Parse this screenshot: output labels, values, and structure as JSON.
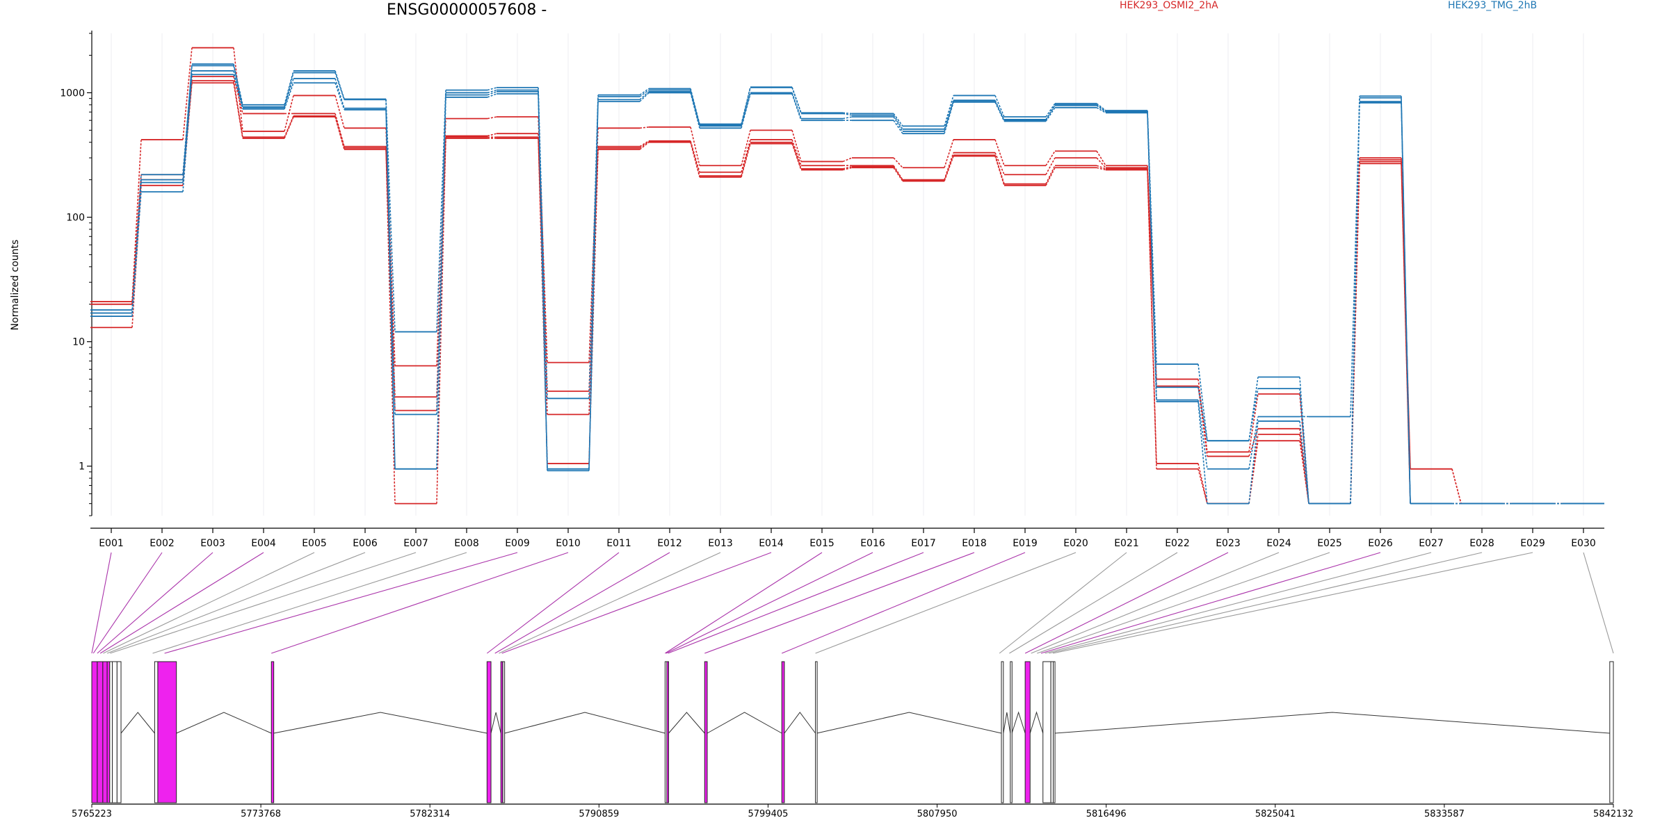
{
  "title": "ENSG00000057608 -",
  "ylabel": "Normalized counts",
  "legend": [
    {
      "name": "HEK293_OSMI2_2hA",
      "color": "#d62728"
    },
    {
      "name": "HEK293_TMG_2hB",
      "color": "#1f77b4"
    }
  ],
  "colors": {
    "red": "#d62728",
    "blue": "#1f77b4",
    "exon_fill": "#ee22ee",
    "exon_link": "#aa33aa",
    "other_link": "#999999",
    "grid": "#ececf2"
  },
  "chart_data": {
    "type": "line",
    "yscale": "log",
    "ylim": [
      0.4,
      3000
    ],
    "yticks": [
      1,
      10,
      100,
      1000
    ],
    "ytick_labels": [
      "1",
      "10",
      "100",
      "1000"
    ],
    "grid": "vertical-only",
    "legend_position": "top",
    "categories": [
      "E001",
      "E002",
      "E003",
      "E004",
      "E005",
      "E006",
      "E007",
      "E008",
      "E009",
      "E010",
      "E011",
      "E012",
      "E013",
      "E014",
      "E015",
      "E016",
      "E017",
      "E018",
      "E019",
      "E020",
      "E021",
      "E022",
      "E023",
      "E024",
      "E025",
      "E026",
      "E027",
      "E028",
      "E029",
      "E030"
    ],
    "series": [
      {
        "name": "",
        "color": "#d62728",
        "values": [
          21,
          420,
          2300,
          490,
          950,
          520,
          6.4,
          620,
          640,
          6.8,
          520,
          530,
          260,
          500,
          280,
          300,
          250,
          420,
          260,
          340,
          260,
          5.0,
          1.3,
          3.8,
          0.5,
          300,
          0.95,
          0.5,
          0.5,
          0.5
        ]
      },
      {
        "name": "",
        "color": "#d62728",
        "values": [
          20,
          220,
          1350,
          680,
          680,
          370,
          3.6,
          450,
          470,
          4.0,
          370,
          410,
          230,
          420,
          260,
          260,
          200,
          330,
          220,
          300,
          250,
          4.4,
          1.2,
          2.0,
          0.5,
          290,
          0.95,
          0.5,
          0.5,
          0.5
        ]
      },
      {
        "name": "",
        "color": "#d62728",
        "values": [
          13,
          180,
          1200,
          430,
          640,
          350,
          2.8,
          430,
          430,
          2.6,
          350,
          400,
          210,
          390,
          240,
          250,
          195,
          310,
          180,
          250,
          240,
          1.05,
          0.5,
          1.6,
          0.5,
          270,
          0.5,
          0.5,
          0.5,
          0.5
        ]
      },
      {
        "name": "",
        "color": "#d62728",
        "values": [
          20,
          200,
          1250,
          440,
          650,
          360,
          0.5,
          440,
          440,
          1.05,
          360,
          405,
          215,
          400,
          245,
          255,
          198,
          315,
          185,
          260,
          245,
          0.95,
          0.5,
          1.8,
          0.5,
          280,
          0.5,
          0.5,
          0.5,
          0.5
        ]
      },
      {
        "name": "",
        "color": "#1f77b4",
        "values": [
          18,
          220,
          1700,
          800,
          1500,
          890,
          12,
          1050,
          1100,
          3.5,
          960,
          1080,
          560,
          1110,
          690,
          680,
          540,
          950,
          640,
          820,
          720,
          6.6,
          1.6,
          5.2,
          0.5,
          940,
          0.5,
          0.5,
          0.5,
          0.5
        ]
      },
      {
        "name": "",
        "color": "#1f77b4",
        "values": [
          17,
          200,
          1650,
          770,
          1450,
          880,
          2.6,
          1000,
          1050,
          0.95,
          930,
          1050,
          550,
          1100,
          680,
          660,
          510,
          870,
          600,
          800,
          710,
          4.3,
          1.6,
          4.2,
          0.5,
          910,
          0.5,
          0.5,
          0.5,
          0.5
        ]
      },
      {
        "name": "",
        "color": "#1f77b4",
        "values": [
          17,
          190,
          1500,
          760,
          1300,
          750,
          0.95,
          960,
          1020,
          0.95,
          880,
          1020,
          540,
          1000,
          620,
          640,
          490,
          860,
          610,
          790,
          700,
          3.4,
          0.95,
          2.5,
          2.5,
          850,
          0.5,
          0.5,
          0.5,
          0.5
        ]
      },
      {
        "name": "",
        "color": "#1f77b4",
        "values": [
          16,
          160,
          1400,
          740,
          1200,
          730,
          0.95,
          920,
          980,
          0.92,
          850,
          1000,
          520,
          980,
          600,
          600,
          470,
          840,
          590,
          760,
          690,
          3.3,
          0.5,
          2.3,
          0.5,
          830,
          0.5,
          0.5,
          0.5,
          0.5
        ]
      }
    ]
  },
  "gene_model": {
    "coord_min": 5765223,
    "coord_max": 5842132,
    "axis_labels": [
      "5765223",
      "5773768",
      "5782314",
      "5790859",
      "5799405",
      "5807950",
      "5816496",
      "5825041",
      "5833587",
      "5842132"
    ],
    "axis_values": [
      5765223,
      5773768,
      5782314,
      5790859,
      5799405,
      5807950,
      5816496,
      5825041,
      5833587,
      5842132
    ],
    "exons": [
      {
        "id": "E001",
        "start": 5765223,
        "end": 5765500,
        "highlight": true
      },
      {
        "id": "E002",
        "start": 5765500,
        "end": 5765780,
        "highlight": true
      },
      {
        "id": "E003",
        "start": 5765780,
        "end": 5766000,
        "highlight": true
      },
      {
        "id": "E004",
        "start": 5766000,
        "end": 5766130,
        "highlight": true
      },
      {
        "id": "E005",
        "start": 5766130,
        "end": 5766260,
        "highlight": false
      },
      {
        "id": "E006",
        "start": 5766260,
        "end": 5766500,
        "highlight": false
      },
      {
        "id": "E007",
        "start": 5766500,
        "end": 5766700,
        "highlight": false
      },
      {
        "id": "E008",
        "start": 5768400,
        "end": 5768560,
        "highlight": false
      },
      {
        "id": "E009",
        "start": 5768560,
        "end": 5769500,
        "highlight": true
      },
      {
        "id": "E010",
        "start": 5774300,
        "end": 5774420,
        "highlight": true
      },
      {
        "id": "E011",
        "start": 5785200,
        "end": 5785400,
        "highlight": true
      },
      {
        "id": "E012",
        "start": 5785900,
        "end": 5785990,
        "highlight": true
      },
      {
        "id": "E013",
        "start": 5786000,
        "end": 5786090,
        "highlight": false
      },
      {
        "id": "E014",
        "start": 5794200,
        "end": 5794290,
        "highlight": false
      },
      {
        "id": "E015",
        "start": 5794290,
        "end": 5794380,
        "highlight": true
      },
      {
        "id": "E016",
        "start": 5796200,
        "end": 5796330,
        "highlight": true
      },
      {
        "id": "E017",
        "start": 5800100,
        "end": 5800230,
        "highlight": true
      },
      {
        "id": "E018",
        "start": 5801800,
        "end": 5801870,
        "highlight": false
      },
      {
        "id": "E019",
        "start": 5811200,
        "end": 5811300,
        "highlight": false
      },
      {
        "id": "E020",
        "start": 5811650,
        "end": 5811730,
        "highlight": false
      },
      {
        "id": "E021",
        "start": 5812400,
        "end": 5812650,
        "highlight": true
      },
      {
        "id": "E022",
        "start": 5813300,
        "end": 5813700,
        "highlight": false
      },
      {
        "id": "E023",
        "start": 5813700,
        "end": 5813820,
        "highlight": false
      },
      {
        "id": "E024",
        "start": 5813820,
        "end": 5813900,
        "highlight": false
      },
      {
        "id": "E030",
        "start": 5841950,
        "end": 5842132,
        "highlight": false
      }
    ],
    "links": [
      {
        "bin": "E001",
        "target": 5765223,
        "highlight": true
      },
      {
        "bin": "E002",
        "target": 5765300,
        "highlight": true
      },
      {
        "bin": "E003",
        "target": 5765500,
        "highlight": true
      },
      {
        "bin": "E004",
        "target": 5765650,
        "highlight": true
      },
      {
        "bin": "E005",
        "target": 5765800,
        "highlight": false
      },
      {
        "bin": "E006",
        "target": 5766000,
        "highlight": false
      },
      {
        "bin": "E007",
        "target": 5766150,
        "highlight": false
      },
      {
        "bin": "E008",
        "target": 5768300,
        "highlight": false
      },
      {
        "bin": "E009",
        "target": 5768900,
        "highlight": true
      },
      {
        "bin": "E010",
        "target": 5774300,
        "highlight": true
      },
      {
        "bin": "E011",
        "target": 5785200,
        "highlight": true
      },
      {
        "bin": "E012",
        "target": 5785600,
        "highlight": true
      },
      {
        "bin": "E013",
        "target": 5785800,
        "highlight": false
      },
      {
        "bin": "E014",
        "target": 5785950,
        "highlight": true
      },
      {
        "bin": "E015",
        "target": 5794200,
        "highlight": true
      },
      {
        "bin": "E016",
        "target": 5794250,
        "highlight": true
      },
      {
        "bin": "E017",
        "target": 5794350,
        "highlight": true
      },
      {
        "bin": "E018",
        "target": 5796200,
        "highlight": true
      },
      {
        "bin": "E019",
        "target": 5800100,
        "highlight": true
      },
      {
        "bin": "E020",
        "target": 5801800,
        "highlight": false
      },
      {
        "bin": "E021",
        "target": 5811100,
        "highlight": false
      },
      {
        "bin": "E022",
        "target": 5811600,
        "highlight": false
      },
      {
        "bin": "E023",
        "target": 5812400,
        "highlight": true
      },
      {
        "bin": "E024",
        "target": 5812700,
        "highlight": false
      },
      {
        "bin": "E025",
        "target": 5813000,
        "highlight": false
      },
      {
        "bin": "E026",
        "target": 5813200,
        "highlight": true
      },
      {
        "bin": "E027",
        "target": 5813400,
        "highlight": false
      },
      {
        "bin": "E028",
        "target": 5813600,
        "highlight": false
      },
      {
        "bin": "E029",
        "target": 5813800,
        "highlight": false
      },
      {
        "bin": "E030",
        "target": 5842132,
        "highlight": false
      }
    ]
  }
}
